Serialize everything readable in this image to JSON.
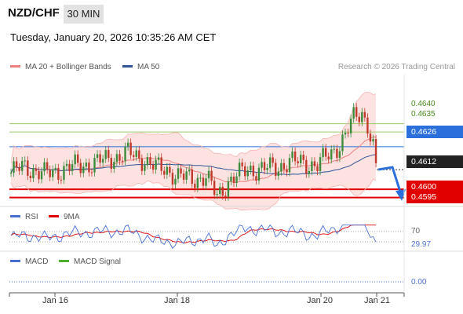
{
  "header": {
    "pair": "NZD/CHF",
    "timeframe": "30 MIN",
    "timestamp": "Tuesday, January 20, 2026 10:35:26 AM CET",
    "credit": "Research © 2026 Trading Central"
  },
  "legends": {
    "ma20": "MA 20 + Bollinger Bands",
    "ma50": "MA 50",
    "rsi": "RSI",
    "rsi_ma": "9MA",
    "macd": "MACD",
    "macd_signal": "MACD Signal"
  },
  "colors": {
    "bull": "#3c8c3c",
    "bear": "#c0392b",
    "ma20": "#f08080",
    "band_fill": "#fde2e2",
    "ma50": "#2f5597",
    "resistance": "#9ccc65",
    "pivot": "#2a6fdb",
    "support": "#e00000",
    "rsi": "#4a6fd4",
    "rsi_ma": "#e00000",
    "macd": "#4a6fd4",
    "macd_signal": "#4caf2f",
    "price_box": "#222222"
  },
  "chart_data": [
    {
      "type": "candlestick",
      "title": "NZD/CHF 30 MIN",
      "x_tick_labels": [
        "Jan 16",
        "Jan 18",
        "Jan 20",
        "Jan 21"
      ],
      "y_range": [
        0.459,
        0.467
      ],
      "levels": {
        "resistance": [
          0.464,
          0.4635
        ],
        "pivot": 0.4626,
        "support": [
          0.46,
          0.4595
        ],
        "current_price": 0.4612
      },
      "level_labels": {
        "r2": "0.4640",
        "r1": "0.4635",
        "pivot": "0.4626",
        "current": "0.4612",
        "s1": "0.4600",
        "s2": "0.4595"
      },
      "expected_direction": "down",
      "indicators": [
        "MA 20 + Bollinger Bands",
        "MA 50"
      ]
    },
    {
      "type": "line",
      "title": "RSI",
      "series": [
        {
          "name": "RSI"
        },
        {
          "name": "9MA"
        }
      ],
      "y_range": [
        0,
        100
      ],
      "reference_levels": [
        70,
        30
      ],
      "level_labels": {
        "upper": "70",
        "last": "29.97"
      },
      "last_value": 29.97
    },
    {
      "type": "line",
      "title": "MACD",
      "series": [
        {
          "name": "MACD"
        },
        {
          "name": "MACD Signal"
        }
      ],
      "reference_levels": [
        0
      ],
      "level_labels": {
        "zero": "0.00"
      }
    }
  ]
}
